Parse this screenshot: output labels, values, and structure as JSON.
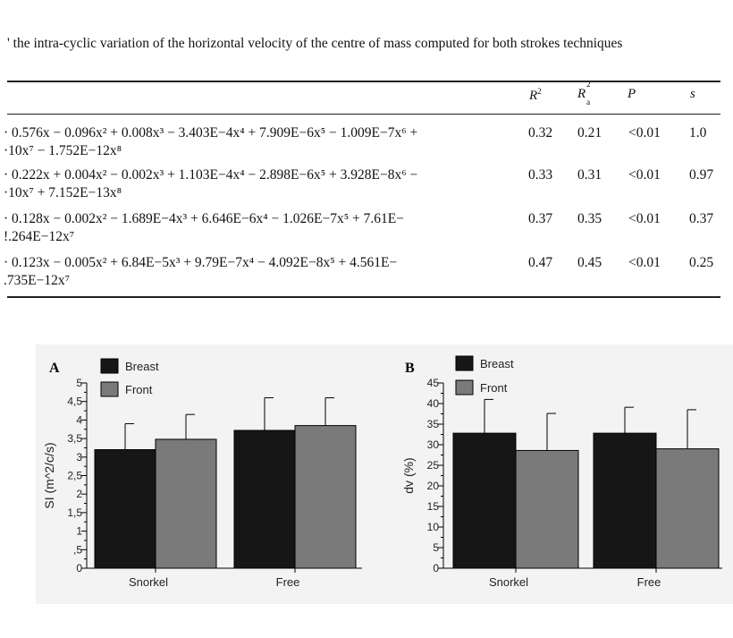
{
  "caption": "' the intra-cyclic variation of the horizontal velocity of the centre of mass computed for both strokes techniques",
  "table": {
    "headers": {
      "r2": "R",
      "r2_sup": "2",
      "ra2": "R",
      "ra2_sup": "2",
      "ra2_sub": "a",
      "p": "P",
      "s": "s"
    },
    "rows": [
      {
        "line1": "· 0.576x − 0.096x² + 0.008x³ − 3.403E−4x⁴ + 7.909E−6x⁵ − 1.009E−7x⁶ +",
        "line2": "·10x⁷ − 1.752E−12x⁸",
        "r2": "0.32",
        "ra2": "0.21",
        "p": "<0.01",
        "s": "1.0"
      },
      {
        "line1": "· 0.222x + 0.004x² − 0.002x³ + 1.103E−4x⁴ − 2.898E−6x⁵ + 3.928E−8x⁶ −",
        "line2": "·10x⁷ + 7.152E−13x⁸",
        "r2": "0.33",
        "ra2": "0.31",
        "p": "<0.01",
        "s": "0.97"
      },
      {
        "line1": "· 0.128x − 0.002x² − 1.689E−4x³ + 6.646E−6x⁴ − 1.026E−7x⁵ + 7.61E−",
        "line2": "!.264E−12x⁷",
        "r2": "0.37",
        "ra2": "0.35",
        "p": "<0.01",
        "s": "0.37"
      },
      {
        "line1": "· 0.123x − 0.005x² + 6.84E−5x³ + 9.79E−7x⁴ − 4.092E−8x⁵ + 4.561E−",
        "line2": ".735E−12x⁷",
        "r2": "0.47",
        "ra2": "0.45",
        "p": "<0.01",
        "s": "0.25"
      }
    ]
  },
  "chart_data": [
    {
      "type": "bar",
      "panel_label": "A",
      "ylabel": "SI (m^2/c/s)",
      "categories": [
        "Snorkel",
        "Free"
      ],
      "ylim": [
        0,
        5
      ],
      "yticks": [
        "0",
        ",5",
        "1",
        "1,5",
        "2",
        "2,5",
        "3",
        "3,5",
        "4",
        "4,5",
        "5"
      ],
      "ytick_values": [
        0,
        0.5,
        1,
        1.5,
        2,
        2.5,
        3,
        3.5,
        4,
        4.5,
        5
      ],
      "series": [
        {
          "name": "Breast",
          "color": "#161616",
          "values": [
            3.2,
            3.72
          ],
          "errors": [
            0.7,
            0.88
          ]
        },
        {
          "name": "Front",
          "color": "#7a7a7a",
          "values": [
            3.48,
            3.85
          ],
          "errors": [
            0.67,
            0.75
          ]
        }
      ],
      "legend_position": "top"
    },
    {
      "type": "bar",
      "panel_label": "B",
      "ylabel": "dv (%)",
      "categories": [
        "Snorkel",
        "Free"
      ],
      "ylim": [
        0,
        45
      ],
      "yticks": [
        "0",
        "5",
        "10",
        "15",
        "20",
        "25",
        "30",
        "35",
        "40",
        "45"
      ],
      "ytick_values": [
        0,
        5,
        10,
        15,
        20,
        25,
        30,
        35,
        40,
        45
      ],
      "series": [
        {
          "name": "Breast",
          "color": "#161616",
          "values": [
            32.8,
            32.8
          ],
          "errors": [
            8.2,
            6.3
          ]
        },
        {
          "name": "Front",
          "color": "#7a7a7a",
          "values": [
            28.6,
            29.0
          ],
          "errors": [
            9.0,
            9.5
          ]
        }
      ],
      "legend_position": "top"
    }
  ]
}
